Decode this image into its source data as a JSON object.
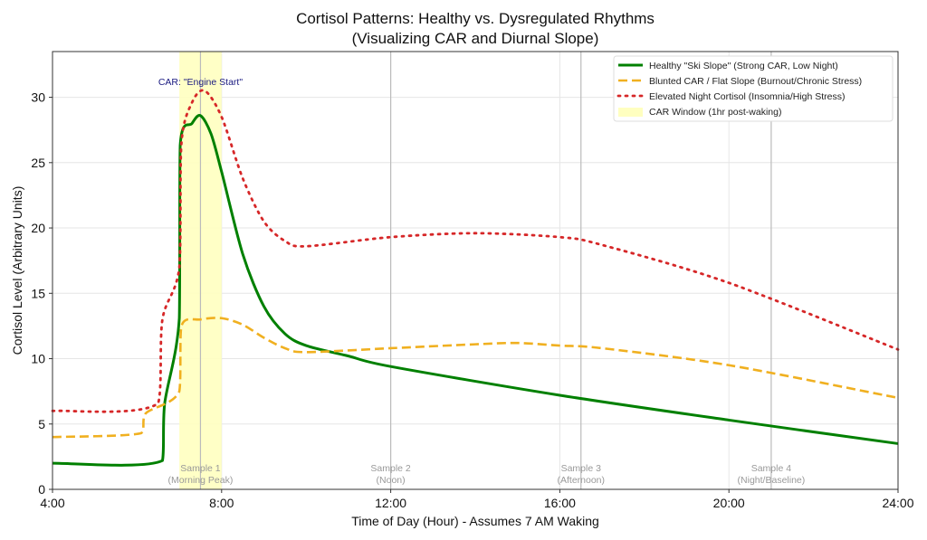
{
  "chart_data": {
    "type": "line",
    "title": "Cortisol Patterns: Healthy vs. Dysregulated Rhythms",
    "subtitle": "(Visualizing CAR and Diurnal Slope)",
    "xlabel": "Time of Day (Hour) - Assumes 7 AM Waking",
    "ylabel": "Cortisol Level (Arbitrary Units)",
    "xlim": [
      4,
      24
    ],
    "ylim": [
      0,
      33.5
    ],
    "x_ticks": [
      {
        "value": 4,
        "label": "4:00"
      },
      {
        "value": 8,
        "label": "8:00"
      },
      {
        "value": 12,
        "label": "12:00"
      },
      {
        "value": 16,
        "label": "16:00"
      },
      {
        "value": 20,
        "label": "20:00"
      },
      {
        "value": 24,
        "label": "24:00"
      }
    ],
    "y_ticks": [
      0,
      5,
      10,
      15,
      20,
      25,
      30
    ],
    "grid": true,
    "legend_position": "top-right",
    "series": [
      {
        "name": "Healthy \"Ski Slope\" (Strong CAR, Low Night)",
        "color": "#008000",
        "style": "solid",
        "x": [
          4,
          6.6,
          6.65,
          7.0,
          7.02,
          7.3,
          7.5,
          7.75,
          8.0,
          8.5,
          9.0,
          9.5,
          10,
          11,
          12,
          16,
          20,
          24
        ],
        "y": [
          2.0,
          2.2,
          6.5,
          13.1,
          26.3,
          28.0,
          28.6,
          27.2,
          24.3,
          18.0,
          14.0,
          11.9,
          11.0,
          10.2,
          9.4,
          7.2,
          5.3,
          3.5
        ]
      },
      {
        "name": "Blunted CAR / Flat Slope (Burnout/Chronic Stress)",
        "color": "#f0b020",
        "style": "dashed",
        "x": [
          4,
          6.1,
          6.2,
          7.0,
          7.05,
          7.5,
          8.0,
          8.5,
          9.0,
          9.5,
          10,
          12,
          14,
          15,
          16,
          17,
          20,
          24
        ],
        "y": [
          4.0,
          4.3,
          5.8,
          7.5,
          12.5,
          13.0,
          13.1,
          12.6,
          11.6,
          10.8,
          10.5,
          10.8,
          11.1,
          11.2,
          11.0,
          10.8,
          9.5,
          7.0
        ]
      },
      {
        "name": "Elevated Night Cortisol (Insomnia/High Stress)",
        "color": "#d62728",
        "style": "dotted",
        "x": [
          4,
          6.5,
          6.6,
          7.0,
          7.05,
          7.3,
          7.6,
          8.0,
          8.5,
          9.0,
          9.5,
          10,
          12,
          14,
          16,
          17,
          20,
          24
        ],
        "y": [
          6.0,
          6.6,
          13.0,
          17.0,
          26.5,
          29.6,
          30.5,
          28.5,
          23.8,
          20.5,
          19.0,
          18.6,
          19.3,
          19.6,
          19.3,
          18.7,
          15.8,
          10.7
        ]
      }
    ],
    "shaded_region": {
      "name": "CAR Window (1hr post-waking)",
      "x_start": 7,
      "x_end": 8,
      "color": "#ffffc0"
    },
    "annotation": {
      "text": "CAR: \"Engine Start\"",
      "x": 7.5,
      "y": 31
    },
    "sample_lines": [
      {
        "x": 7.5,
        "label1": "Sample 1",
        "label2": "(Morning Peak)"
      },
      {
        "x": 12,
        "label1": "Sample 2",
        "label2": "(Noon)"
      },
      {
        "x": 16.5,
        "label1": "Sample 3",
        "label2": "(Afternoon)"
      },
      {
        "x": 21,
        "label1": "Sample 4",
        "label2": "(Night/Baseline)"
      }
    ]
  }
}
